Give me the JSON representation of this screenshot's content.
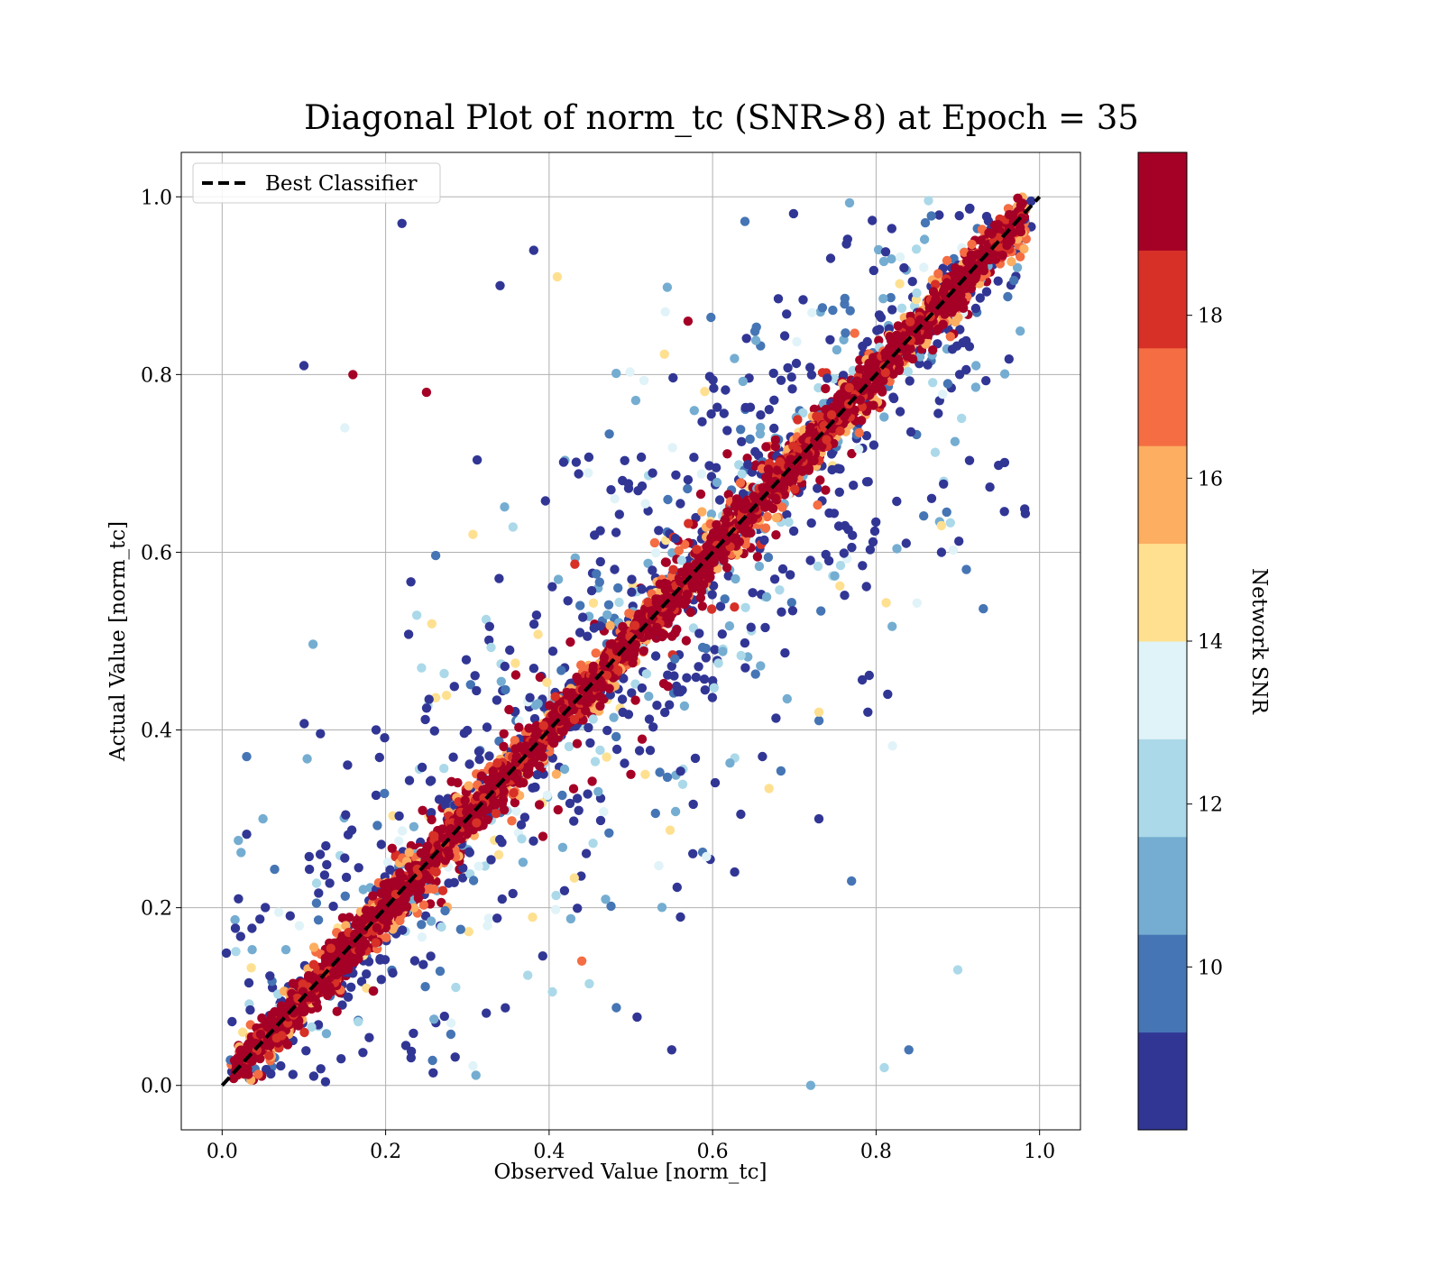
{
  "chart_data": {
    "type": "scatter",
    "title": "Diagonal Plot of norm_tc (SNR>8) at Epoch = 35",
    "xlabel": "Observed Value [norm_tc]",
    "ylabel": "Actual Value [norm_tc]",
    "xlim": [
      -0.05,
      1.05
    ],
    "ylim": [
      -0.05,
      1.05
    ],
    "x_ticks": [
      0.0,
      0.2,
      0.4,
      0.6,
      0.8,
      1.0
    ],
    "y_ticks": [
      0.0,
      0.2,
      0.4,
      0.6,
      0.8,
      1.0
    ],
    "x_tick_labels": [
      "0.0",
      "0.2",
      "0.4",
      "0.6",
      "0.8",
      "1.0"
    ],
    "y_tick_labels": [
      "0.0",
      "0.2",
      "0.4",
      "0.6",
      "0.8",
      "1.0"
    ],
    "grid": true,
    "reference_line": {
      "name": "Best Classifier",
      "x": [
        0.0,
        1.0
      ],
      "y": [
        0.0,
        1.0
      ],
      "style": "dashed",
      "color": "#000000"
    },
    "legend": {
      "position": "top-left",
      "entries": [
        "Best Classifier"
      ]
    },
    "colorbar": {
      "label": "Network SNR",
      "range": [
        8,
        20
      ],
      "ticks": [
        10,
        12,
        14,
        16,
        18
      ],
      "tick_labels": [
        "10",
        "12",
        "14",
        "16",
        "18"
      ],
      "colors": [
        "#313695",
        "#4575b4",
        "#74add1",
        "#abd9e9",
        "#e0f3f8",
        "#fee090",
        "#fdae61",
        "#f46d43",
        "#d73027",
        "#a50026"
      ]
    },
    "point_color_groups": {
      "low_snr": "#313695",
      "mid_snr": [
        "#4575b4",
        "#74add1",
        "#abd9e9",
        "#e0f3f8",
        "#fee090"
      ],
      "high_snr": [
        "#fdae61",
        "#f46d43",
        "#d73027",
        "#a50026"
      ]
    },
    "sample_outliers": [
      {
        "x": 0.1,
        "y": 0.81
      },
      {
        "x": 0.16,
        "y": 0.8
      },
      {
        "x": 0.22,
        "y": 0.97
      },
      {
        "x": 0.25,
        "y": 0.78
      },
      {
        "x": 0.34,
        "y": 0.9
      },
      {
        "x": 0.41,
        "y": 0.91
      },
      {
        "x": 0.03,
        "y": 0.37
      },
      {
        "x": 0.02,
        "y": 0.21
      },
      {
        "x": 0.15,
        "y": 0.74
      },
      {
        "x": 0.9,
        "y": 0.13
      },
      {
        "x": 0.84,
        "y": 0.04
      },
      {
        "x": 0.88,
        "y": 0.6
      },
      {
        "x": 0.88,
        "y": 0.63
      },
      {
        "x": 0.79,
        "y": 0.42
      },
      {
        "x": 0.77,
        "y": 0.23
      },
      {
        "x": 0.72,
        "y": 0.0
      },
      {
        "x": 0.81,
        "y": 0.02
      },
      {
        "x": 0.55,
        "y": 0.04
      },
      {
        "x": 0.5,
        "y": 0.35
      },
      {
        "x": 0.64,
        "y": 0.47
      },
      {
        "x": 0.57,
        "y": 0.86
      },
      {
        "x": 0.73,
        "y": 0.3
      },
      {
        "x": 0.73,
        "y": 0.42
      },
      {
        "x": 0.44,
        "y": 0.14
      },
      {
        "x": 0.12,
        "y": 0.26
      },
      {
        "x": 0.05,
        "y": 0.3
      }
    ],
    "sample_color_values": [
      8,
      19.5,
      8,
      19,
      8,
      15,
      10,
      8,
      13.5,
      12,
      10,
      8,
      14,
      8,
      10,
      11,
      12,
      8,
      19,
      8,
      19,
      8,
      15,
      17,
      8,
      11
    ]
  }
}
